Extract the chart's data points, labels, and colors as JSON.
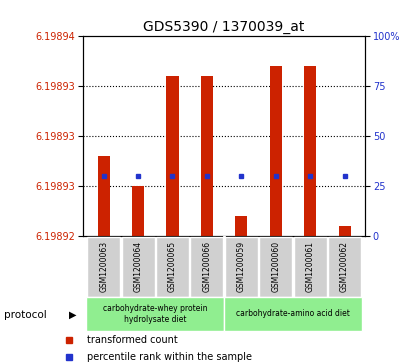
{
  "title": "GDS5390 / 1370039_at",
  "samples": [
    "GSM1200063",
    "GSM1200064",
    "GSM1200065",
    "GSM1200066",
    "GSM1200059",
    "GSM1200060",
    "GSM1200061",
    "GSM1200062"
  ],
  "red_values": [
    6.198928,
    6.198925,
    6.198936,
    6.198936,
    6.198922,
    6.198937,
    6.198937,
    6.198921
  ],
  "blue_y_values": [
    6.198926,
    6.198926,
    6.198926,
    6.198926,
    6.198926,
    6.198926,
    6.198926,
    6.198926
  ],
  "bar_base": 6.19892,
  "ylim_left": [
    6.19892,
    6.19894
  ],
  "ylim_right": [
    0,
    100
  ],
  "ytick_labels_left": [
    "6.19892",
    "6.19893",
    "6.19893",
    "6.19893",
    "6.19894"
  ],
  "ytick_labels_right": [
    "0",
    "25",
    "50",
    "75",
    "100%"
  ],
  "group1_label": "carbohydrate-whey protein\nhydrolysate diet",
  "group2_label": "carbohydrate-amino acid diet",
  "group_color": "#90ee90",
  "protocol_label": "protocol",
  "legend_red": "transformed count",
  "legend_blue": "percentile rank within the sample",
  "bar_color": "#cc2200",
  "blue_color": "#2233cc",
  "plot_bg": "#ffffff",
  "left_label_color": "#cc2200",
  "right_label_color": "#2233cc",
  "title_color": "#000000",
  "sample_bg_color": "#d0d0d0"
}
